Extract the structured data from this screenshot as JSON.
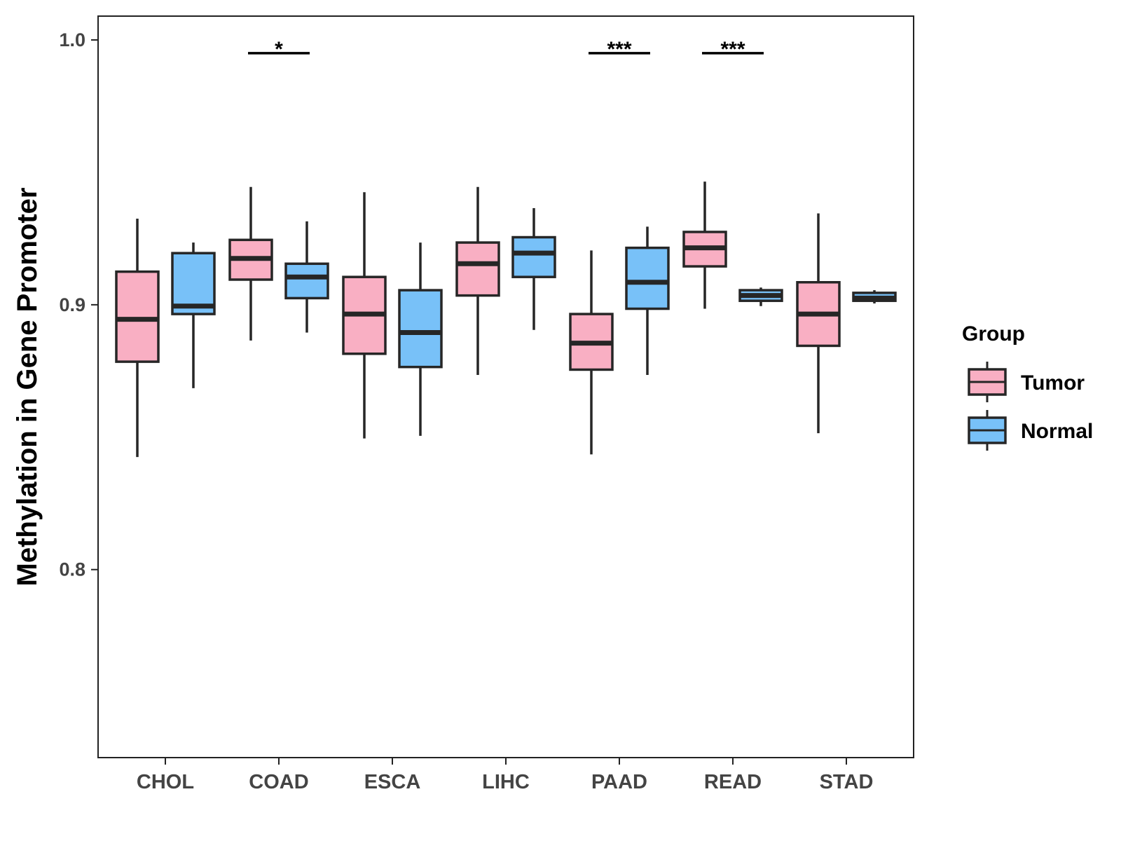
{
  "chart_data": {
    "type": "boxplot",
    "title": "",
    "xlabel": "",
    "ylabel": "Methylation in Gene Promoter",
    "ylim": [
      0.729,
      1.009
    ],
    "yticks": [
      {
        "value": 0.8,
        "label": "0.8"
      },
      {
        "value": 0.9,
        "label": "0.9"
      },
      {
        "value": 1.0,
        "label": "1.0"
      }
    ],
    "categories": [
      "CHOL",
      "COAD",
      "ESCA",
      "LIHC",
      "PAAD",
      "READ",
      "STAD"
    ],
    "legend": {
      "title": "Group",
      "position": "right",
      "entries": [
        {
          "name": "Tumor",
          "color": "#F9AFC3"
        },
        {
          "name": "Normal",
          "color": "#78C1F8"
        }
      ]
    },
    "series": [
      {
        "name": "Tumor",
        "color": "#F9AFC3",
        "boxes": [
          {
            "min": 0.8425,
            "q1": 0.8785,
            "median": 0.8945,
            "q3": 0.9125,
            "max": 0.9325
          },
          {
            "min": 0.8865,
            "q1": 0.9095,
            "median": 0.9175,
            "q3": 0.9245,
            "max": 0.9445
          },
          {
            "min": 0.8495,
            "q1": 0.8815,
            "median": 0.8965,
            "q3": 0.9105,
            "max": 0.9425
          },
          {
            "min": 0.8735,
            "q1": 0.9035,
            "median": 0.9155,
            "q3": 0.9235,
            "max": 0.9445
          },
          {
            "min": 0.8435,
            "q1": 0.8755,
            "median": 0.8855,
            "q3": 0.8965,
            "max": 0.9205
          },
          {
            "min": 0.8985,
            "q1": 0.9145,
            "median": 0.9215,
            "q3": 0.9275,
            "max": 0.9465
          },
          {
            "min": 0.8515,
            "q1": 0.8845,
            "median": 0.8965,
            "q3": 0.9085,
            "max": 0.9345
          }
        ]
      },
      {
        "name": "Normal",
        "color": "#78C1F8",
        "boxes": [
          {
            "min": 0.8685,
            "q1": 0.8965,
            "median": 0.8995,
            "q3": 0.9195,
            "max": 0.9235
          },
          {
            "min": 0.8895,
            "q1": 0.9025,
            "median": 0.9105,
            "q3": 0.9155,
            "max": 0.9315
          },
          {
            "min": 0.8505,
            "q1": 0.8765,
            "median": 0.8895,
            "q3": 0.9055,
            "max": 0.9235
          },
          {
            "min": 0.8905,
            "q1": 0.9105,
            "median": 0.9195,
            "q3": 0.9255,
            "max": 0.9365
          },
          {
            "min": 0.8735,
            "q1": 0.8985,
            "median": 0.9085,
            "q3": 0.9215,
            "max": 0.9295
          },
          {
            "min": 0.8995,
            "q1": 0.9015,
            "median": 0.9035,
            "q3": 0.9055,
            "max": 0.9065
          },
          {
            "min": 0.9005,
            "q1": 0.9015,
            "median": 0.9025,
            "q3": 0.9045,
            "max": 0.9055
          }
        ]
      }
    ],
    "annotations": [
      {
        "category": "COAD",
        "text": "*",
        "y": 0.995
      },
      {
        "category": "PAAD",
        "text": "***",
        "y": 0.995
      },
      {
        "category": "READ",
        "text": "***",
        "y": 0.995
      }
    ]
  }
}
